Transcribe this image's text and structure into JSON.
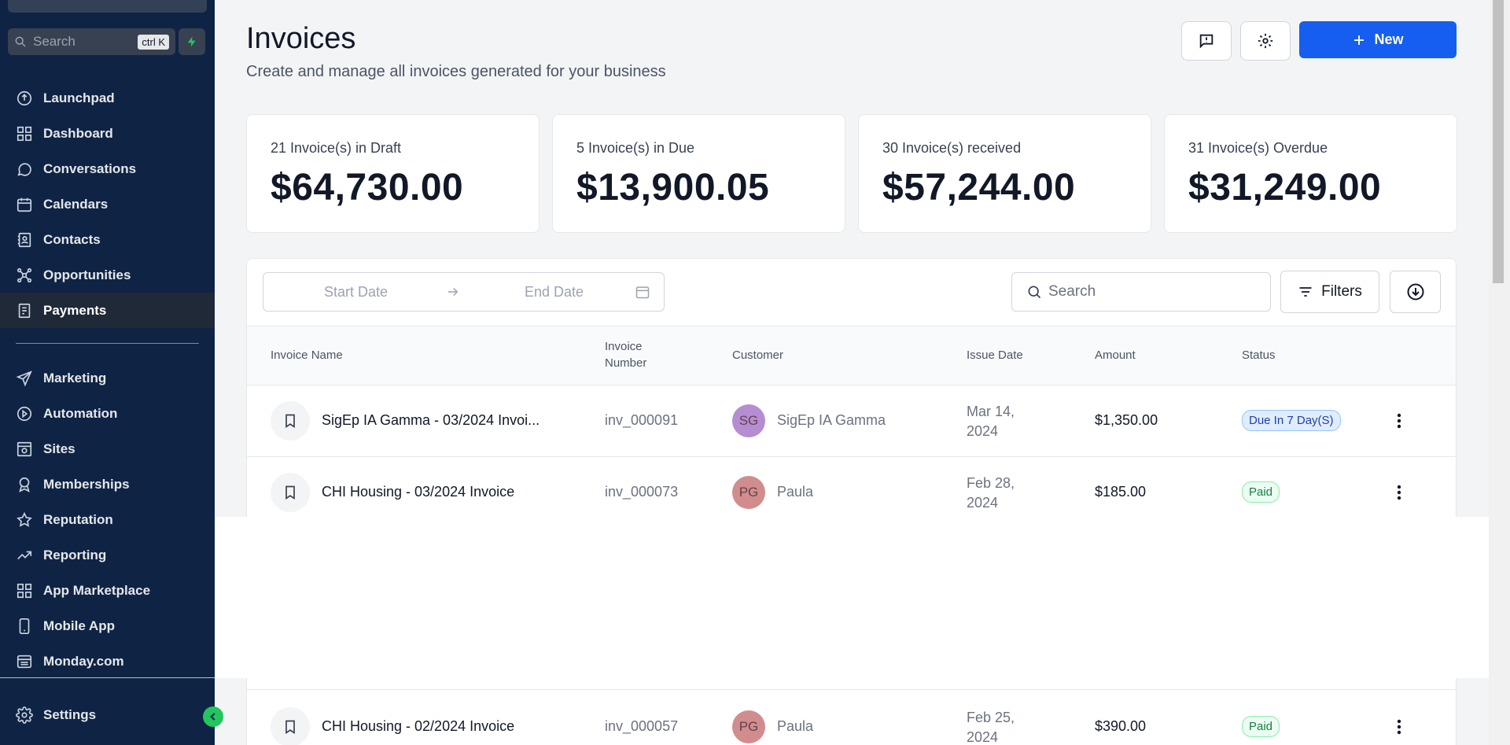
{
  "sidebar": {
    "search_placeholder": "Search",
    "search_shortcut": "ctrl K",
    "items": [
      {
        "label": "Launchpad",
        "icon": "launchpad-icon"
      },
      {
        "label": "Dashboard",
        "icon": "dashboard-icon"
      },
      {
        "label": "Conversations",
        "icon": "chat-icon"
      },
      {
        "label": "Calendars",
        "icon": "calendar-icon"
      },
      {
        "label": "Contacts",
        "icon": "contacts-icon"
      },
      {
        "label": "Opportunities",
        "icon": "opportunities-icon"
      },
      {
        "label": "Payments",
        "icon": "payments-icon",
        "active": true
      }
    ],
    "items2": [
      {
        "label": "Marketing",
        "icon": "send-icon"
      },
      {
        "label": "Automation",
        "icon": "automation-icon"
      },
      {
        "label": "Sites",
        "icon": "sites-icon"
      },
      {
        "label": "Memberships",
        "icon": "memberships-icon"
      },
      {
        "label": "Reputation",
        "icon": "star-icon"
      },
      {
        "label": "Reporting",
        "icon": "trend-icon"
      },
      {
        "label": "App Marketplace",
        "icon": "grid-icon"
      },
      {
        "label": "Mobile App",
        "icon": "phone-icon"
      },
      {
        "label": "Monday.com",
        "icon": "monday-icon"
      }
    ],
    "settings_label": "Settings"
  },
  "header": {
    "title": "Invoices",
    "subtitle": "Create and manage all invoices generated for your business",
    "new_label": "New"
  },
  "cards": [
    {
      "label": "21 Invoice(s) in Draft",
      "value": "$64,730.00"
    },
    {
      "label": "5 Invoice(s) in Due",
      "value": "$13,900.05"
    },
    {
      "label": "30 Invoice(s) received",
      "value": "$57,244.00"
    },
    {
      "label": "31 Invoice(s) Overdue",
      "value": "$31,249.00"
    }
  ],
  "toolbar": {
    "start_date_placeholder": "Start Date",
    "end_date_placeholder": "End Date",
    "search_placeholder": "Search",
    "filters_label": "Filters"
  },
  "table": {
    "columns": {
      "name": "Invoice Name",
      "number_line1": "Invoice",
      "number_line2": "Number",
      "customer": "Customer",
      "issue_date": "Issue Date",
      "amount": "Amount",
      "status": "Status"
    },
    "rows": [
      {
        "name": "SigEp IA Gamma - 03/2024 Invoi...",
        "number": "inv_000091",
        "initials": "SG",
        "avatar_color": "#a77bc9",
        "customer": "SigEp IA Gamma",
        "date_line1": "Mar 14,",
        "date_line2": "2024",
        "amount": "$1,350.00",
        "status": "Due In 7 Day(S)",
        "status_type": "due"
      },
      {
        "name": "CHI Housing - 03/2024 Invoice",
        "number": "inv_000073",
        "initials": "PG",
        "avatar_color": "#c97a7a",
        "customer": "Paula",
        "date_line1": "Feb 28,",
        "date_line2": "2024",
        "amount": "$185.00",
        "status": "Paid",
        "status_type": "paid"
      },
      {
        "name": "CHI Housing - 02/2024 Invoice",
        "number": "inv_000057",
        "initials": "PG",
        "avatar_color": "#c97a7a",
        "customer": "Paula",
        "date_line1": "Feb 25,",
        "date_line2": "2024",
        "amount": "$390.00",
        "status": "Paid",
        "status_type": "paid"
      }
    ]
  }
}
